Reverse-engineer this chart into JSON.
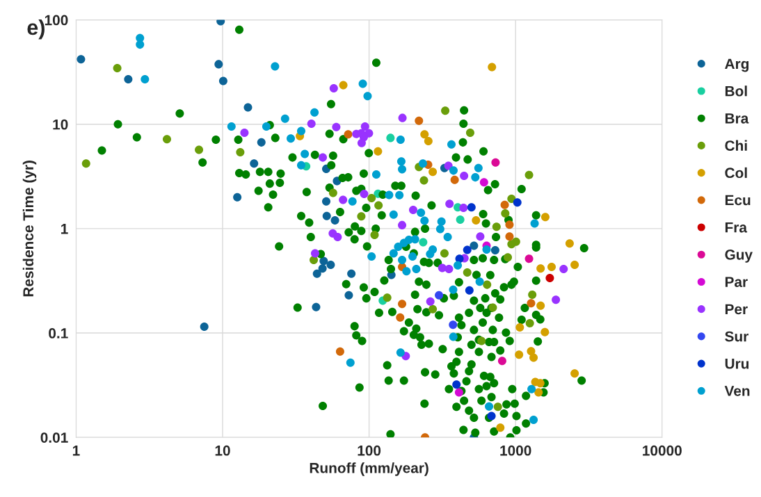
{
  "chart_data": {
    "type": "scatter",
    "title": "e)",
    "xlabel": "Runoff (mm/year)",
    "ylabel": "Residence Time (yr)",
    "log": "xy",
    "xlim": [
      1,
      10000
    ],
    "ylim": [
      0.01,
      100
    ],
    "xticks": [
      1,
      10,
      100,
      1000,
      10000
    ],
    "yticks": [
      0.01,
      0.1,
      1,
      10,
      100
    ],
    "grid": true,
    "legend": "right",
    "marker": "circle",
    "series": [
      {
        "name": "Arg",
        "color": "#0d6497",
        "x": [
          1.08,
          2.27,
          9.4,
          9.7,
          10.1,
          14.9,
          18.4,
          16.4,
          12.6,
          7.5,
          51,
          60.4,
          51,
          51.4,
          58.5,
          327,
          49,
          54.7,
          48.1,
          44.1,
          75.7,
          72.7,
          43.5,
          142,
          520,
          726,
          520
        ],
        "values": [
          42,
          27,
          37.6,
          97,
          26,
          14.5,
          6.7,
          4.2,
          2.0,
          0.115,
          3.74,
          2.86,
          1.82,
          1.32,
          1.2,
          3.8,
          0.49,
          0.45,
          0.415,
          0.37,
          0.37,
          0.23,
          0.177,
          0.36,
          0.685,
          0.62,
          0.01
        ]
      },
      {
        "name": "Bol",
        "color": "#19cfa0",
        "x": [
          140,
          37.2,
          115,
          403,
          419,
          234,
          124
        ],
        "values": [
          7.4,
          3.95,
          2.16,
          1.6,
          1.22,
          0.74,
          0.204
        ]
      },
      {
        "name": "Bra",
        "color": "#008000",
        "x": [
          13,
          1.93,
          1.5,
          2.6,
          5.1,
          7.3,
          9.0,
          12.8,
          13,
          14.4,
          18,
          20.5,
          21,
          17.6,
          21,
          20.5,
          112,
          55,
          53.7,
          66.7,
          22.9,
          445,
          441,
          437,
          604,
          99.6,
          30,
          42.7,
          56.8,
          55.2,
          24.9,
          24.6,
          22.1,
          37.5,
          471,
          392,
          649,
          724,
          92,
          65.9,
          72,
          53.7,
          81.8,
          88.5,
          95.6,
          124,
          122,
          151,
          166,
          208,
          267,
          34.4,
          39,
          63.4,
          111,
          24.3,
          46.8,
          32.5,
          40,
          72.6,
          79.6,
          88.5,
          80,
          96.9,
          69.8,
          92,
          95.8,
          109,
          117,
          144,
          79.6,
          81.8,
          89.6,
          86,
          48.3,
          140,
          133,
          136,
          173,
          239,
          127,
          136,
          141,
          206,
          241,
          179,
          202,
          237,
          256,
          294,
          219,
          246,
          206,
          324,
          214,
          246,
          300,
          187,
          210,
          173,
          202,
          223,
          228,
          256,
          318,
          241,
          283,
          351,
          379,
          365,
          395,
          411,
          403,
          427,
          411,
          481,
          520,
          500,
          562,
          500,
          481,
          462,
          427,
          445,
          395,
          481,
          520,
          441,
          531,
          585,
          685,
          634,
          672,
          609,
          685,
          659,
          562,
          713,
          699,
          597,
          634,
          574,
          771,
          520,
          621,
          726,
          672,
          541,
          713,
          597,
          520,
          411,
          379,
          713,
          659,
          1099,
          895,
          1381,
          1381,
          1381,
          2938,
          1036,
          1381,
          938,
          1156,
          1381,
          1475,
          1099,
          1419,
          912,
          2825,
          1578,
          1552,
          949,
          1178,
          986,
          867,
          834,
          1014,
          1178,
          1014,
          920,
          601,
          628,
          735,
          850,
          975,
          834,
          786,
          684,
          860,
          786,
          713,
          562
        ],
        "values": [
          80.6,
          10,
          5.6,
          7.5,
          12.7,
          4.3,
          7.1,
          7.1,
          3.4,
          3.3,
          3.5,
          3.5,
          9.8,
          2.3,
          2.7,
          1.6,
          38.9,
          15.6,
          8.1,
          7.2,
          7.4,
          13.6,
          10.1,
          6.7,
          5.5,
          5.3,
          4.8,
          5.1,
          5.0,
          4.05,
          3.36,
          2.75,
          2.12,
          2.24,
          4.6,
          4.8,
          2.34,
          2.66,
          3.36,
          3.06,
          3.1,
          2.47,
          2.3,
          2.4,
          1.58,
          2.12,
          1.34,
          2.57,
          2.57,
          2.07,
          1.67,
          1.32,
          1.14,
          1.44,
          1.0,
          0.675,
          0.57,
          0.175,
          0.83,
          0.92,
          0.79,
          0.95,
          1.05,
          0.675,
          0.294,
          0.273,
          0.215,
          0.247,
          0.156,
          0.159,
          0.116,
          0.095,
          0.084,
          0.03,
          0.02,
          0.0107,
          0.049,
          0.035,
          0.035,
          0.021,
          0.318,
          0.5,
          0.41,
          0.93,
          1.0,
          0.67,
          0.58,
          0.48,
          0.47,
          0.47,
          0.31,
          0.29,
          0.233,
          0.215,
          0.169,
          0.158,
          0.148,
          0.126,
          0.11,
          0.104,
          0.096,
          0.091,
          0.077,
          0.079,
          0.07,
          0.042,
          0.04,
          0.029,
          0.041,
          0.048,
          0.053,
          0.066,
          0.091,
          0.119,
          0.14,
          0.156,
          0.107,
          0.077,
          0.066,
          0.05,
          0.043,
          0.0345,
          0.0278,
          0.0224,
          0.0196,
          0.018,
          0.0154,
          0.0118,
          0.0111,
          0.0224,
          0.0243,
          0.031,
          0.038,
          0.0388,
          0.059,
          0.082,
          0.086,
          0.082,
          0.107,
          0.126,
          0.156,
          0.174,
          0.14,
          0.204,
          0.215,
          0.24,
          0.359,
          0.36,
          0.5,
          0.52,
          0.5,
          0.306,
          0.227,
          0.0114,
          0.0154,
          2.39,
          1.21,
          1.34,
          0.7,
          0.66,
          0.65,
          0.43,
          0.317,
          0.29,
          0.174,
          0.149,
          0.135,
          0.134,
          0.083,
          0.084,
          0.035,
          0.033,
          0.027,
          0.029,
          0.025,
          0.021,
          0.0207,
          0.0169,
          0.016,
          0.0136,
          0.0117,
          0.01,
          1.38,
          1.12,
          0.83,
          0.51,
          0.31,
          0.274,
          0.21,
          0.174,
          0.101,
          0.068,
          0.033,
          0.029
        ]
      },
      {
        "name": "Chi",
        "color": "#6a9e0a",
        "x": [
          1.91,
          1.17,
          4.17,
          6.9,
          13.2,
          331,
          490,
          219,
          237,
          56.8,
          104,
          116,
          88.5,
          741,
          41.9,
          109,
          133,
          272,
          327,
          468,
          585,
          639,
          699,
          757,
          1236,
          938,
          850,
          1007,
          938,
          885,
          1300,
          1251
        ],
        "values": [
          34.5,
          4.2,
          7.2,
          5.7,
          5.4,
          13.5,
          8.3,
          3.9,
          2.9,
          2.2,
          1.96,
          1.67,
          1.31,
          1.04,
          0.5,
          0.87,
          0.218,
          0.169,
          0.58,
          0.38,
          0.084,
          0.29,
          0.175,
          0.0196,
          3.27,
          1.93,
          1.4,
          0.75,
          0.71,
          0.53,
          0.233,
          0.124
        ]
      },
      {
        "name": "Col",
        "color": "#d4a000",
        "x": [
          66.7,
          690,
          33.7,
          239,
          254,
          115,
          272,
          537,
          787,
          1596,
          2339,
          1482,
          1762,
          2531,
          1482,
          1069,
          1585,
          1056,
          1276,
          1327,
          2531,
          1364,
          1475,
          1435
        ],
        "values": [
          23.7,
          35.3,
          7.7,
          8.0,
          6.9,
          5.5,
          3.5,
          1.2,
          0.0124,
          1.29,
          0.72,
          0.415,
          0.43,
          0.45,
          0.183,
          0.113,
          0.102,
          0.062,
          0.067,
          0.058,
          0.041,
          0.034,
          0.033,
          0.027
        ]
      },
      {
        "name": "Ecu",
        "color": "#d2690a",
        "x": [
          72,
          219,
          253,
          384,
          168,
          168,
          163,
          63.4,
          241,
          843,
          909,
          909,
          1276
        ],
        "values": [
          8.0,
          10.8,
          4.1,
          2.93,
          0.43,
          0.19,
          0.141,
          0.0665,
          0.01,
          1.69,
          1.09,
          0.84,
          0.193
        ]
      },
      {
        "name": "Fra",
        "color": "#cc0000",
        "x": [
          1713
        ],
        "values": [
          0.336
        ]
      },
      {
        "name": "Guy",
        "color": "#db0a96",
        "x": [
          730,
          1236,
          810
        ],
        "values": [
          4.3,
          0.515,
          0.054
        ]
      },
      {
        "name": "Par",
        "color": "#d40ad4",
        "x": [
          609,
          634,
          411
        ],
        "values": [
          2.78,
          0.685,
          0.027
        ]
      },
      {
        "name": "Per",
        "color": "#9933ff",
        "x": [
          14.1,
          57.4,
          40.4,
          59.7,
          93.8,
          81.8,
          88.5,
          99.8,
          92,
          89,
          48.3,
          169,
          348,
          445,
          92.5,
          66.4,
          354,
          441,
          200,
          42.8,
          56.5,
          61,
          178,
          262,
          316,
          351,
          574,
          448,
          168,
          2128,
          1884
        ],
        "values": [
          8.3,
          22.1,
          10.1,
          9.4,
          9.5,
          8.07,
          8.2,
          8.2,
          7.5,
          6.6,
          4.8,
          11.5,
          4.0,
          3.2,
          2.15,
          1.89,
          1.73,
          1.58,
          1.51,
          0.58,
          0.9,
          0.83,
          0.06,
          0.2,
          0.42,
          0.41,
          0.84,
          0.52,
          1.08,
          0.41,
          0.208
        ]
      },
      {
        "name": "Sur",
        "color": "#3347f0",
        "x": [
          300,
          374
        ],
        "values": [
          0.23,
          0.12
        ]
      },
      {
        "name": "Uru",
        "color": "#0033cc",
        "x": [
          500,
          484,
          468,
          414,
          395,
          685,
          1028
        ],
        "values": [
          1.6,
          0.256,
          0.625,
          0.515,
          0.032,
          0.016,
          1.78
        ]
      },
      {
        "name": "Ven",
        "color": "#00a0d0",
        "x": [
          2.73,
          2.73,
          2.95,
          11.5,
          19.9,
          22.8,
          90.6,
          97.7,
          42.4,
          26.7,
          34.4,
          29.2,
          164,
          365,
          36.4,
          34.4,
          166,
          168,
          233,
          377,
          531,
          558,
          112,
          77,
          137,
          161,
          147,
          226,
          239,
          312,
          306,
          74.6,
          104,
          168,
          180,
          198,
          210,
          147,
          158,
          173,
          187,
          206,
          272,
          261,
          164,
          375,
          569,
          376,
          659,
          344,
          634,
          403,
          1349,
          1285,
          1327
        ],
        "values": [
          67,
          58,
          27,
          9.5,
          9.5,
          35.9,
          24.4,
          18.6,
          13,
          11.3,
          8.6,
          7.3,
          7.1,
          6.4,
          5.2,
          4.05,
          4.4,
          3.7,
          4.2,
          3.6,
          3.1,
          3.8,
          3.3,
          1.82,
          2.1,
          2.09,
          1.36,
          1.42,
          1.19,
          1.17,
          0.99,
          0.052,
          0.54,
          0.5,
          0.39,
          0.54,
          0.41,
          0.58,
          0.67,
          0.73,
          0.78,
          0.79,
          0.63,
          0.57,
          0.065,
          0.26,
          0.31,
          0.092,
          0.0198,
          0.83,
          0.63,
          0.445,
          1.12,
          0.029,
          0.0147
        ]
      }
    ]
  }
}
